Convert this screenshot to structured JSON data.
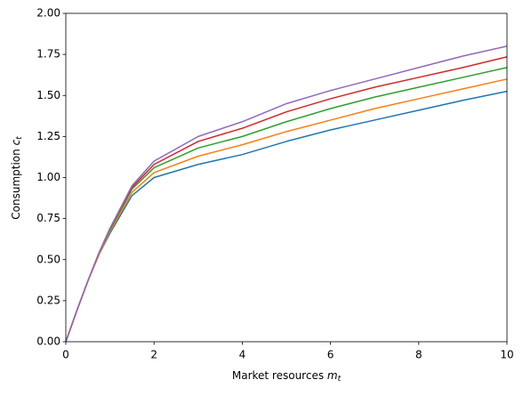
{
  "chart_data": {
    "type": "line",
    "x_label": "Market resources ",
    "x_label_var": "m",
    "x_label_sub": "t",
    "y_label": "Consumption ",
    "y_label_var": "c",
    "y_label_sub": "t",
    "x": [
      0,
      0.25,
      0.5,
      0.75,
      1,
      1.5,
      2,
      3,
      4,
      5,
      6,
      7,
      8,
      9,
      10
    ],
    "series": [
      {
        "color": "#1f77b4",
        "values": [
          0,
          0.19,
          0.37,
          0.53,
          0.66,
          0.89,
          1.0,
          1.08,
          1.14,
          1.22,
          1.29,
          1.35,
          1.41,
          1.47,
          1.525
        ]
      },
      {
        "color": "#ff7f0e",
        "values": [
          0,
          0.19,
          0.37,
          0.53,
          0.67,
          0.91,
          1.03,
          1.13,
          1.2,
          1.28,
          1.35,
          1.42,
          1.48,
          1.54,
          1.6
        ]
      },
      {
        "color": "#2ca02c",
        "values": [
          0,
          0.19,
          0.37,
          0.54,
          0.68,
          0.93,
          1.06,
          1.18,
          1.25,
          1.34,
          1.42,
          1.49,
          1.55,
          1.61,
          1.67
        ]
      },
      {
        "color": "#d62728",
        "values": [
          0,
          0.19,
          0.37,
          0.54,
          0.69,
          0.94,
          1.08,
          1.22,
          1.3,
          1.4,
          1.48,
          1.55,
          1.61,
          1.67,
          1.735
        ]
      },
      {
        "color": "#9467bd",
        "values": [
          0,
          0.19,
          0.37,
          0.54,
          0.69,
          0.95,
          1.1,
          1.25,
          1.34,
          1.45,
          1.53,
          1.6,
          1.67,
          1.74,
          1.8
        ]
      }
    ],
    "xlim": [
      0,
      10
    ],
    "xticks": [
      0,
      2,
      4,
      6,
      8,
      10
    ],
    "ylim": [
      0,
      2
    ],
    "yticks": [
      {
        "value": 0,
        "label": "0.00"
      },
      {
        "value": 0.25,
        "label": "0.25"
      },
      {
        "value": 0.5,
        "label": "0.50"
      },
      {
        "value": 0.75,
        "label": "0.75"
      },
      {
        "value": 1,
        "label": "1.00"
      },
      {
        "value": 1.25,
        "label": "1.25"
      },
      {
        "value": 1.5,
        "label": "1.50"
      },
      {
        "value": 1.75,
        "label": "1.75"
      },
      {
        "value": 2,
        "label": "2.00"
      }
    ],
    "grid": false
  }
}
